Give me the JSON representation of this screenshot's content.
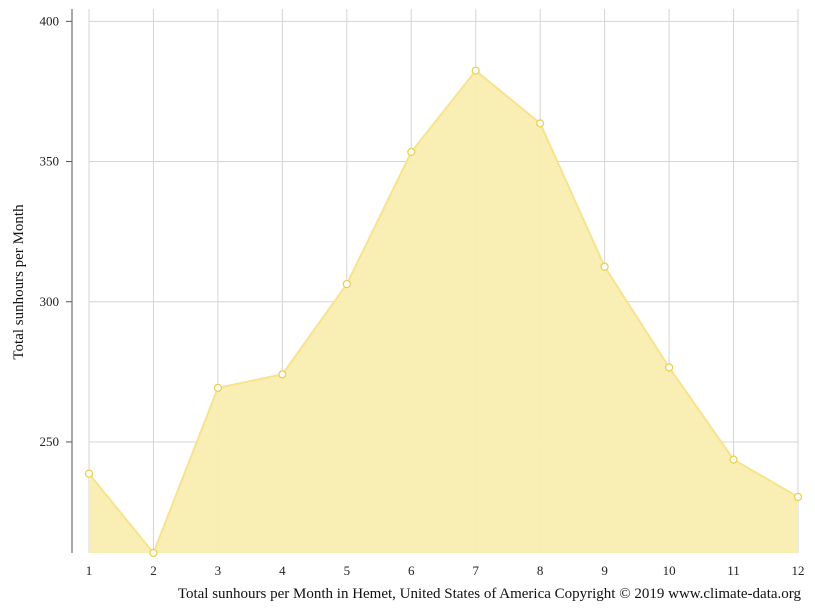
{
  "chart_data": {
    "type": "area",
    "x": [
      1,
      2,
      3,
      4,
      5,
      6,
      7,
      8,
      9,
      10,
      11,
      12
    ],
    "series": [
      {
        "values": [
          238.7,
          210.4,
          269.3,
          274.1,
          306.3,
          353.4,
          382.4,
          363.6,
          312.5,
          276.6,
          243.7,
          230.4
        ]
      }
    ],
    "xlabel": "",
    "ylabel": "Total sunhours per Month",
    "caption": "Total sunhours per Month in Hemet, United States of America Copyright © 2019 www.climate-data.org",
    "ylim": [
      210.4,
      404.4
    ],
    "y_ticks": [
      250,
      300,
      350,
      400
    ],
    "grid": true,
    "fill_color": "#f9eeb0",
    "line_color": "#f7e38e",
    "marker_fill": "#ffffff",
    "marker_stroke": "#e8cf4a",
    "grid_color": "#d4d4d4"
  }
}
